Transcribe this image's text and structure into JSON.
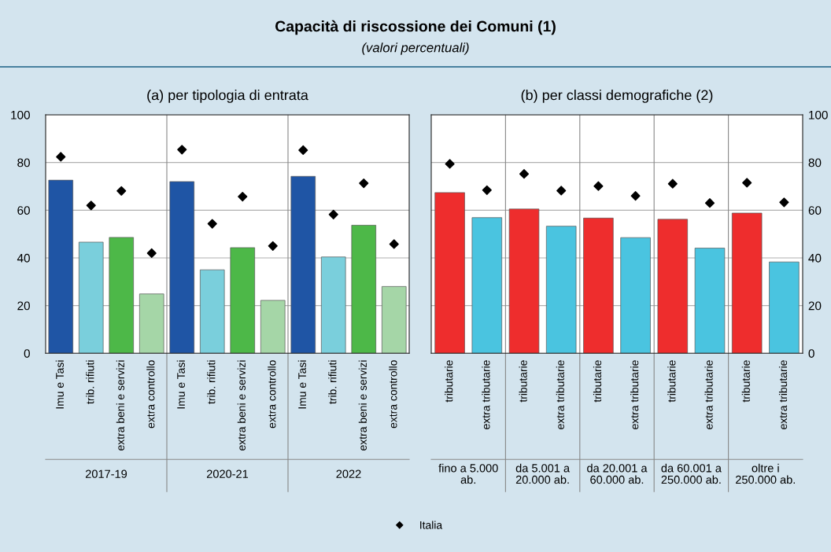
{
  "chart_data": [
    {
      "type": "bar",
      "title": "Capacità di riscossione dei Comuni (1)",
      "subtitle": "(valori percentuali)",
      "annotations": [
        "(a) per tipologia di entrata",
        "2017-19",
        "2020-21",
        "2022"
      ],
      "categories": [
        "Imu e Tasi",
        "trib. rifiuti",
        "extra beni e servizi",
        "extra controllo",
        "Imu e Tasi",
        "trib. rifiuti",
        "extra beni e servizi",
        "extra controllo",
        "Imu e Tasi",
        "trib. rifiuti",
        "extra beni e servizi",
        "extra controllo"
      ],
      "series": [
        {
          "colors": [
            "#1f55a5",
            "#7acfdc",
            "#4db848",
            "#a5d6a7",
            "#1f55a5",
            "#7acfdc",
            "#4db848",
            "#a5d6a7",
            "#1f55a5",
            "#7acfdc",
            "#4db848",
            "#a5d6a7"
          ],
          "values": [
            72.6,
            46.6,
            48.6,
            24.9,
            72.0,
            35.0,
            44.3,
            22.2,
            74.2,
            40.4,
            53.7,
            28.0
          ]
        },
        {
          "type": "scatter",
          "name": "Italia",
          "color": "#000000",
          "marker": "diamond",
          "values": [
            82.4,
            62.0,
            68.1,
            42.0,
            85.4,
            54.3,
            65.7,
            45.0,
            85.2,
            58.2,
            71.3,
            45.8
          ]
        }
      ],
      "ylim": [
        0,
        100
      ],
      "yticks": [
        0,
        20,
        40,
        60,
        80,
        100
      ],
      "grid": "y",
      "legend": "bottom"
    },
    {
      "type": "bar",
      "annotations": [
        "(b) per classi demografiche (2)",
        "fino a 5.000\nab.",
        "da 5.001 a\n20.000 ab.",
        "da 20.001 a\n60.000 ab.",
        "da 60.001 a\n250.000 ab.",
        "oltre i\n250.000 ab."
      ],
      "categories": [
        "tributarie",
        "extra tributarie",
        "tributarie",
        "extra tributarie",
        "tributarie",
        "extra tributarie",
        "tributarie",
        "extra tributarie",
        "tributarie",
        "extra tributarie"
      ],
      "series": [
        {
          "axis": "y2",
          "colors": [
            "#ee2d2d",
            "#4ac4e0",
            "#ee2d2d",
            "#4ac4e0",
            "#ee2d2d",
            "#4ac4e0",
            "#ee2d2d",
            "#4ac4e0",
            "#ee2d2d",
            "#4ac4e0"
          ],
          "values": [
            67.4,
            56.9,
            60.5,
            53.3,
            56.7,
            48.5,
            56.2,
            44.1,
            58.8,
            38.3
          ]
        },
        {
          "type": "scatter",
          "axis": "y2",
          "name": "Italia",
          "color": "#000000",
          "marker": "diamond",
          "values": [
            79.4,
            68.4,
            75.2,
            68.2,
            70.1,
            66.0,
            71.1,
            63.0,
            71.5,
            63.3
          ]
        }
      ],
      "y2lim": [
        0,
        100
      ],
      "y2ticks": [
        0,
        20,
        40,
        60,
        80,
        100
      ],
      "grid": "y",
      "legend": "bottom"
    }
  ]
}
